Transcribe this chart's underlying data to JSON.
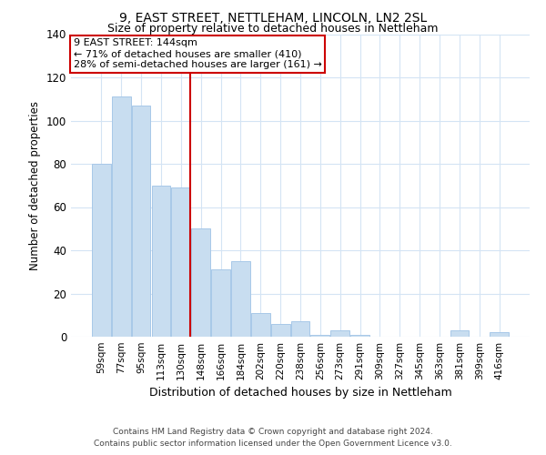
{
  "title": "9, EAST STREET, NETTLEHAM, LINCOLN, LN2 2SL",
  "subtitle": "Size of property relative to detached houses in Nettleham",
  "xlabel": "Distribution of detached houses by size in Nettleham",
  "ylabel": "Number of detached properties",
  "categories": [
    "59sqm",
    "77sqm",
    "95sqm",
    "113sqm",
    "130sqm",
    "148sqm",
    "166sqm",
    "184sqm",
    "202sqm",
    "220sqm",
    "238sqm",
    "256sqm",
    "273sqm",
    "291sqm",
    "309sqm",
    "327sqm",
    "345sqm",
    "363sqm",
    "381sqm",
    "399sqm",
    "416sqm"
  ],
  "values": [
    80,
    111,
    107,
    70,
    69,
    50,
    31,
    35,
    11,
    6,
    7,
    1,
    3,
    1,
    0,
    0,
    0,
    0,
    3,
    0,
    2
  ],
  "bar_color": "#c8ddf0",
  "bar_edge_color": "#a8c8e8",
  "highlight_line_color": "#cc0000",
  "annotation_text": "9 EAST STREET: 144sqm\n← 71% of detached houses are smaller (410)\n28% of semi-detached houses are larger (161) →",
  "annotation_box_facecolor": "#ffffff",
  "annotation_box_edgecolor": "#cc0000",
  "ylim": [
    0,
    140
  ],
  "yticks": [
    0,
    20,
    40,
    60,
    80,
    100,
    120,
    140
  ],
  "footer_line1": "Contains HM Land Registry data © Crown copyright and database right 2024.",
  "footer_line2": "Contains public sector information licensed under the Open Government Licence v3.0.",
  "background_color": "#ffffff",
  "grid_color": "#d4e4f4",
  "title_fontsize": 10,
  "subtitle_fontsize": 9
}
